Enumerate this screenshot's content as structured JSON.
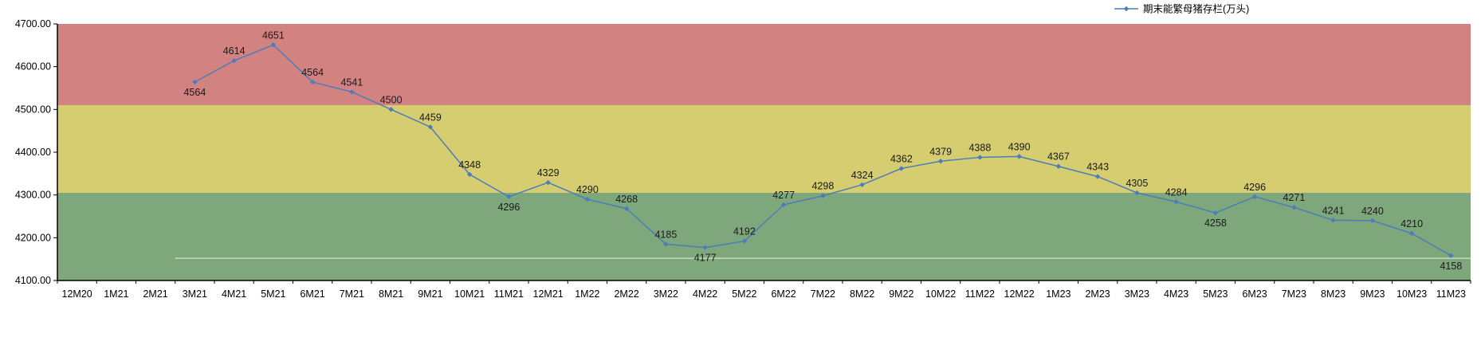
{
  "chart_data": {
    "type": "line",
    "title": "",
    "x": [
      "12M20",
      "1M21",
      "2M21",
      "3M21",
      "4M21",
      "5M21",
      "6M21",
      "7M21",
      "8M21",
      "9M21",
      "10M21",
      "11M21",
      "12M21",
      "1M22",
      "2M22",
      "3M22",
      "4M22",
      "5M22",
      "6M22",
      "7M22",
      "8M22",
      "9M22",
      "10M22",
      "11M22",
      "12M22",
      "1M23",
      "2M23",
      "3M23",
      "4M23",
      "5M23",
      "6M23",
      "7M23",
      "8M23",
      "9M23",
      "10M23",
      "11M23"
    ],
    "series": [
      {
        "name": "期末能繁母猪存栏(万头)",
        "color": "#4a7ebb",
        "values": [
          null,
          null,
          null,
          4564,
          4614,
          4651,
          4564,
          4541,
          4500,
          4459,
          4348,
          4296,
          4329,
          4290,
          4268,
          4185,
          4177,
          4192,
          4277,
          4298,
          4324,
          4362,
          4379,
          4388,
          4390,
          4367,
          4343,
          4305,
          4284,
          4258,
          4296,
          4271,
          4241,
          4240,
          4210,
          4158
        ]
      }
    ],
    "ylim": [
      4100,
      4700
    ],
    "ytick_step": 100,
    "ytick_decimals": 2,
    "bands": [
      {
        "from": 4510,
        "to": 4700,
        "color": "#d28280"
      },
      {
        "from": 4305,
        "to": 4510,
        "color": "#d5cd70"
      },
      {
        "from": 4100,
        "to": 4305,
        "color": "#7ea77c"
      }
    ],
    "reference_line": {
      "value": 4152,
      "color": "#eeeee6",
      "from_index": 3
    },
    "labels_below": [
      3,
      11,
      16,
      29,
      35
    ],
    "label_color": "#1a1a1a",
    "axis_color": "#000000",
    "legend_position": "top-right",
    "grid": false
  }
}
